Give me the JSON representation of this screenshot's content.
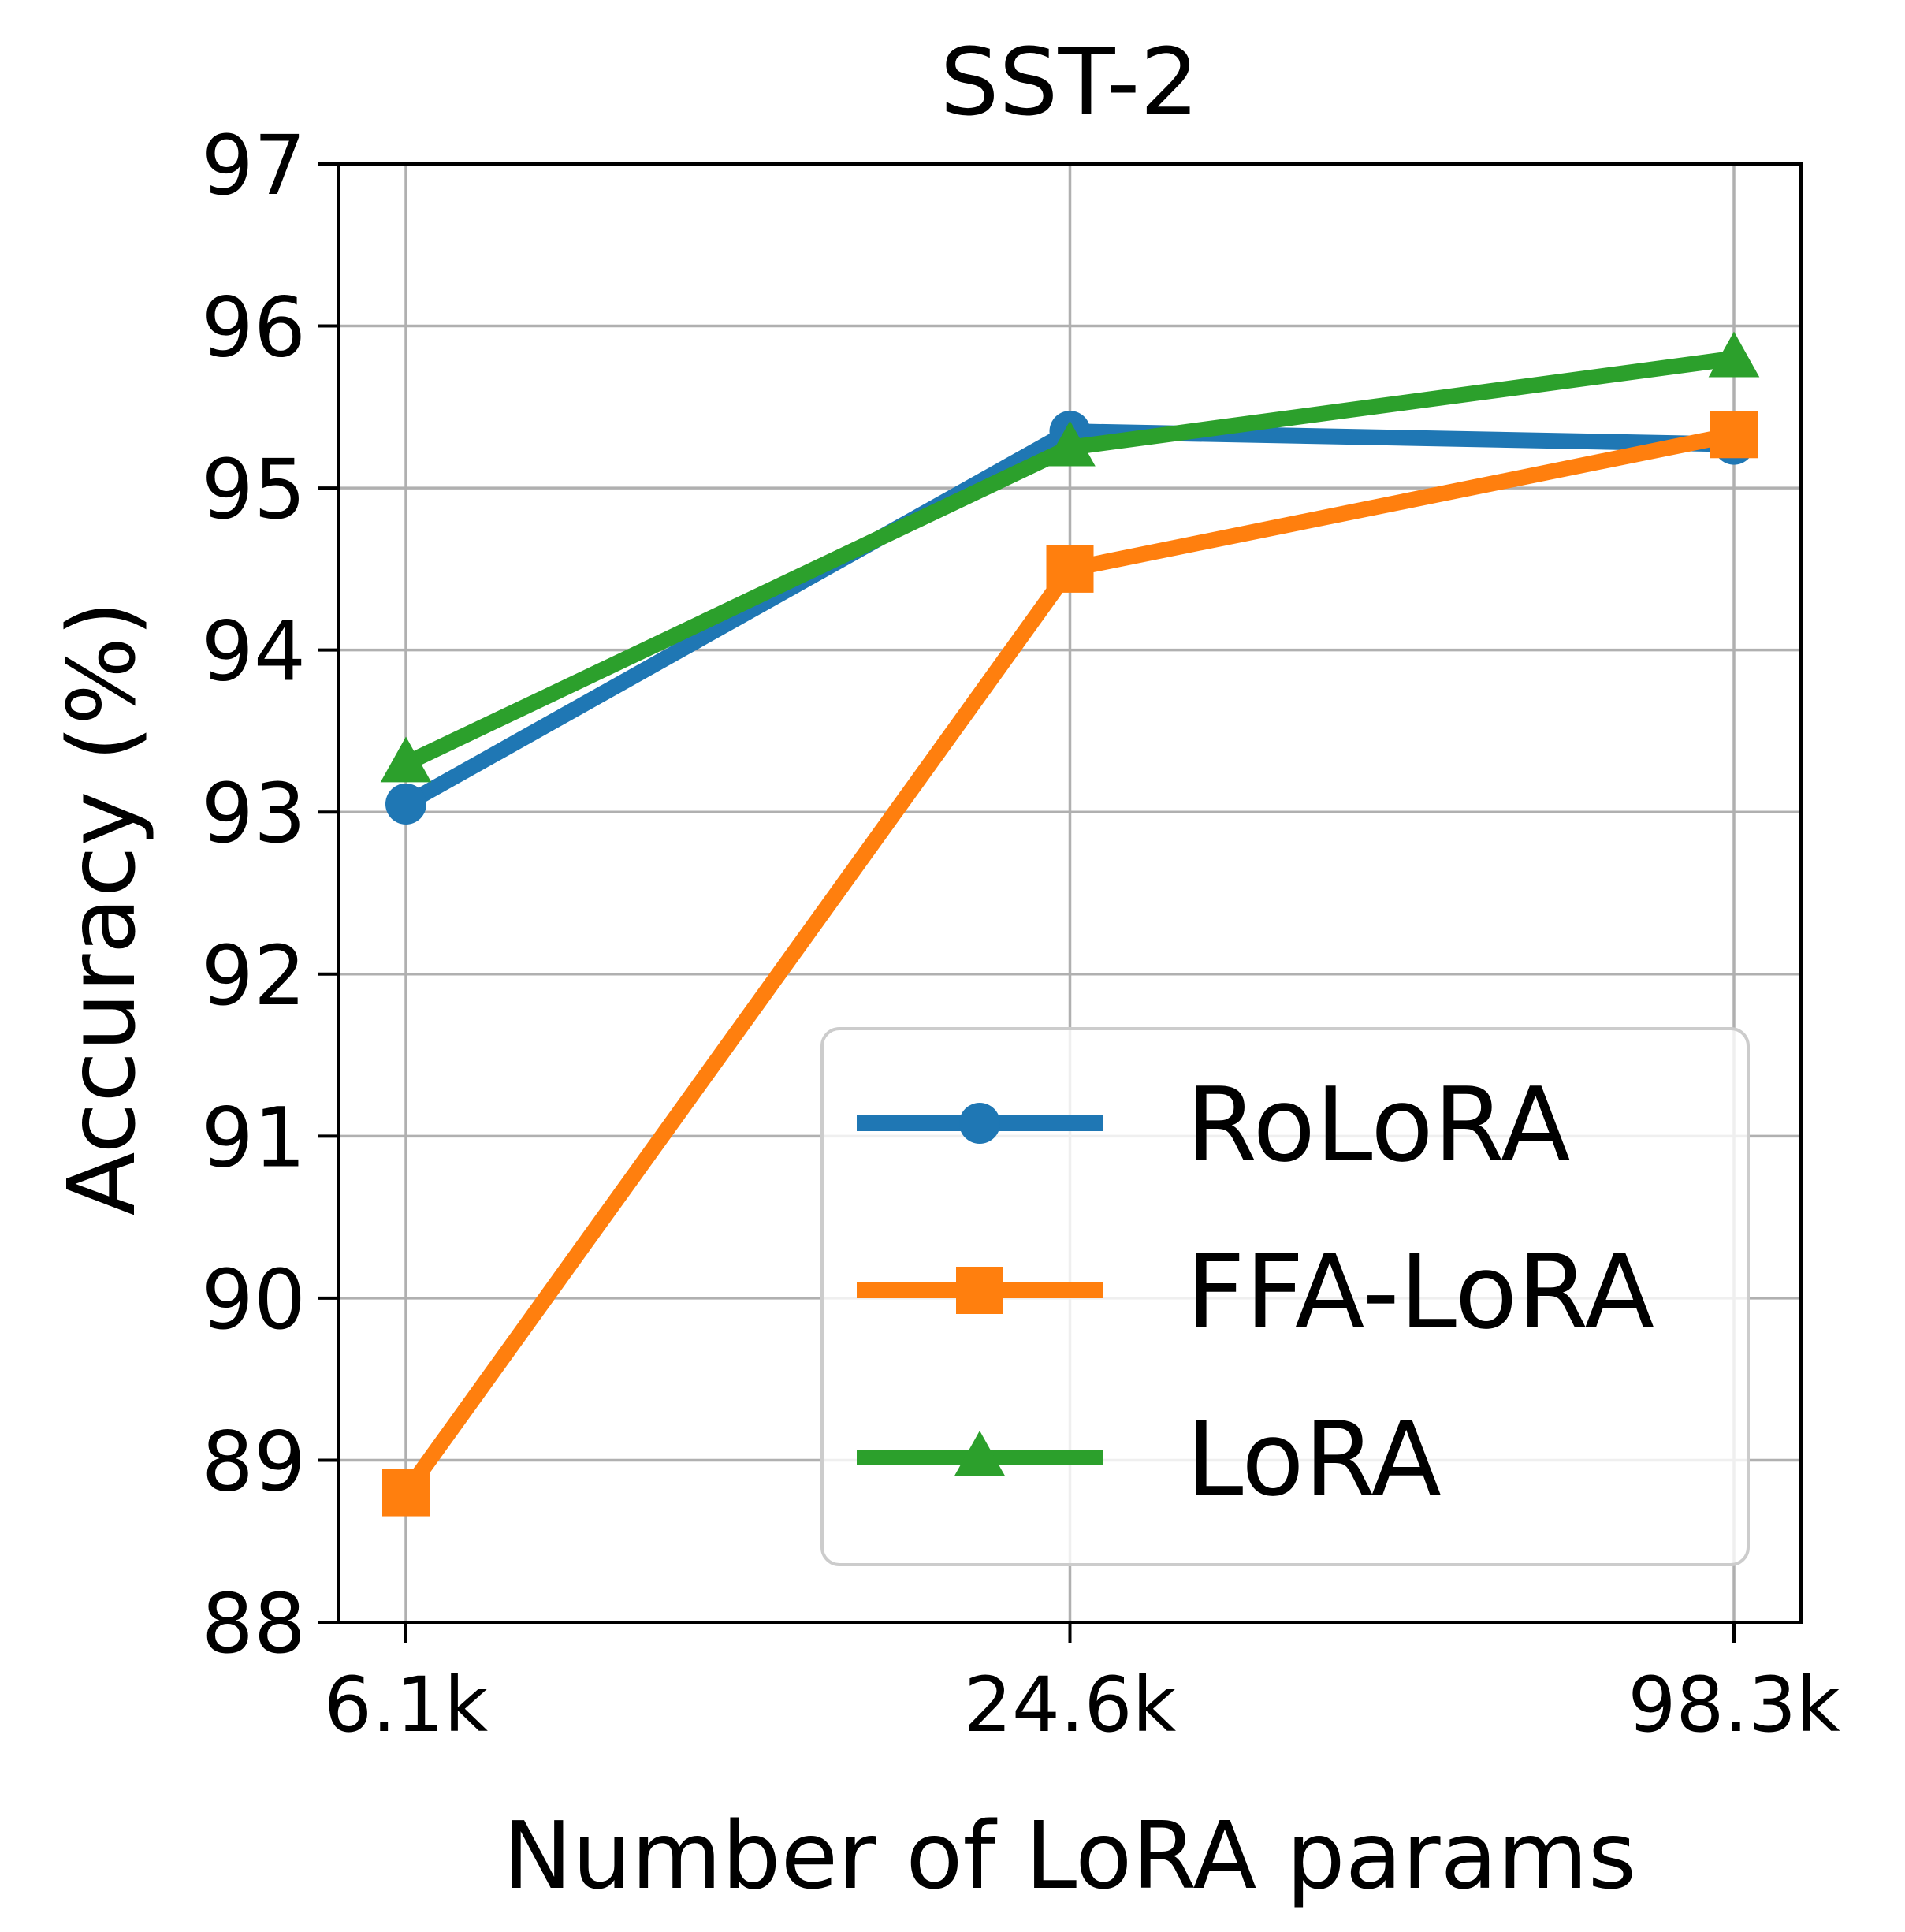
{
  "chart_data": {
    "type": "line",
    "title": "SST-2",
    "xlabel": "Number of LoRA params",
    "ylabel": "Accuracy (%)",
    "categories": [
      "6.1k",
      "24.6k",
      "98.3k"
    ],
    "ylim": [
      88,
      97
    ],
    "yticks": [
      88,
      89,
      90,
      91,
      92,
      93,
      94,
      95,
      96,
      97
    ],
    "grid": true,
    "legend_position": "lower-right",
    "series": [
      {
        "name": "RoLoRA",
        "marker": "circle",
        "color": "#1f77b4",
        "values": [
          93.05,
          95.35,
          95.27
        ]
      },
      {
        "name": "FFA-LoRA",
        "marker": "square",
        "color": "#ff7f0e",
        "values": [
          88.8,
          94.5,
          95.33
        ]
      },
      {
        "name": "LoRA",
        "marker": "triangle",
        "color": "#2ca02c",
        "values": [
          93.3,
          95.25,
          95.8
        ]
      }
    ]
  }
}
